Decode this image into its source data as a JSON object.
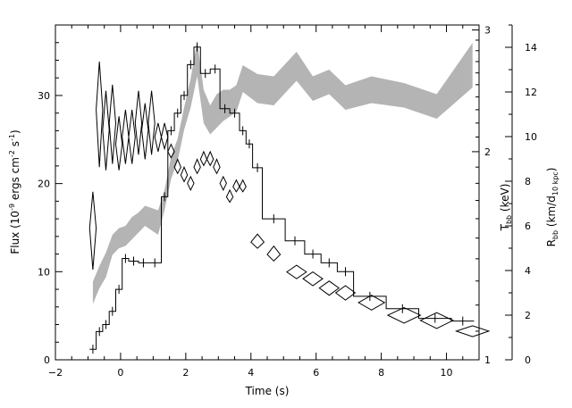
{
  "chart_data": {
    "type": "line",
    "xlabel": "Time (s)",
    "xlim": [
      -2,
      11
    ],
    "x_ticks": [
      -2,
      0,
      2,
      4,
      6,
      8,
      10
    ],
    "left_axis": {
      "label_prefix": "Flux (10",
      "label_exp1": "-9",
      "label_mid": " ergs cm",
      "label_exp2": "-2",
      "label_mid2": " s",
      "label_exp3": "-1",
      "label_suffix": ")",
      "ylim": [
        0,
        38
      ],
      "ticks": [
        0,
        10,
        20,
        30
      ]
    },
    "kT_axis": {
      "label_main": "T",
      "label_sub": "bb",
      "label_suffix": " (keV)",
      "scale": "log",
      "ticks": [
        1,
        2,
        3
      ],
      "tick_labels": [
        "1",
        "2",
        "3"
      ]
    },
    "radius_axis": {
      "label_main": "R",
      "label_sub": "bb",
      "label_mid": " (km/d",
      "label_sub2": "10 kpc",
      "label_suffix": ")",
      "ylim": [
        0,
        15
      ],
      "ticks": [
        0,
        2,
        4,
        6,
        8,
        10,
        12,
        14
      ]
    },
    "series": [
      {
        "style": "flux-histogram",
        "bins": [
          [
            -0.95,
            -0.75,
            1.2
          ],
          [
            -0.75,
            -0.55,
            3.2
          ],
          [
            -0.55,
            -0.35,
            4.0
          ],
          [
            -0.35,
            -0.15,
            5.5
          ],
          [
            -0.15,
            0.05,
            8.0
          ],
          [
            0.05,
            0.25,
            11.5
          ],
          [
            0.25,
            0.55,
            11.2
          ],
          [
            0.55,
            0.85,
            11.0
          ],
          [
            0.85,
            1.25,
            11.0
          ],
          [
            1.25,
            1.45,
            18.5
          ],
          [
            1.45,
            1.65,
            26.0
          ],
          [
            1.65,
            1.85,
            28.0
          ],
          [
            1.85,
            2.05,
            30.0
          ],
          [
            2.05,
            2.25,
            33.5
          ],
          [
            2.25,
            2.45,
            35.5
          ],
          [
            2.45,
            2.75,
            32.5
          ],
          [
            2.75,
            3.05,
            33.0
          ],
          [
            3.05,
            3.35,
            28.5
          ],
          [
            3.35,
            3.65,
            28.0
          ],
          [
            3.65,
            3.85,
            26.0
          ],
          [
            3.85,
            4.05,
            24.5
          ],
          [
            4.05,
            4.35,
            21.8
          ],
          [
            4.35,
            5.05,
            16.0
          ],
          [
            5.05,
            5.65,
            13.5
          ],
          [
            5.65,
            6.15,
            12.0
          ],
          [
            6.15,
            6.65,
            11.0
          ],
          [
            6.65,
            7.15,
            10.0
          ],
          [
            7.15,
            8.15,
            7.2
          ],
          [
            8.15,
            9.15,
            5.8
          ],
          [
            9.15,
            10.15,
            4.7
          ],
          [
            10.15,
            10.85,
            4.4
          ]
        ]
      },
      {
        "style": "radius-band",
        "x": [
          -0.85,
          -0.65,
          -0.45,
          -0.25,
          -0.05,
          0.15,
          0.35,
          0.55,
          0.75,
          0.95,
          1.15,
          1.35,
          1.55,
          1.75,
          1.95,
          2.15,
          2.35,
          2.55,
          2.75,
          2.95,
          3.15,
          3.35,
          3.55,
          3.75,
          4.2,
          4.7,
          5.4,
          5.9,
          6.4,
          6.9,
          7.7,
          8.7,
          9.7,
          10.8
        ],
        "low": [
          2.5,
          3.2,
          3.7,
          4.7,
          5.0,
          5.1,
          5.4,
          5.7,
          6.0,
          5.8,
          5.6,
          6.7,
          8.1,
          8.9,
          10.3,
          11.3,
          12.7,
          10.6,
          10.1,
          10.4,
          10.7,
          10.9,
          11.1,
          12.0,
          11.5,
          11.4,
          12.5,
          11.6,
          11.9,
          11.2,
          11.5,
          11.3,
          10.8,
          12.2
        ],
        "high": [
          3.5,
          4.2,
          4.8,
          5.6,
          5.9,
          6.0,
          6.4,
          6.6,
          6.9,
          6.8,
          6.7,
          7.6,
          9.1,
          9.9,
          11.3,
          12.6,
          14.3,
          12.1,
          11.4,
          11.9,
          12.1,
          12.1,
          12.3,
          13.2,
          12.8,
          12.7,
          13.8,
          12.7,
          13.0,
          12.3,
          12.7,
          12.4,
          11.9,
          14.2
        ]
      },
      {
        "style": "kT-diamonds",
        "x": [
          -0.85,
          -0.65,
          -0.45,
          -0.25,
          -0.05,
          0.15,
          0.35,
          0.55,
          0.75,
          0.95,
          1.15,
          1.35,
          1.55,
          1.75,
          1.95,
          2.15,
          2.35,
          2.55,
          2.75,
          2.95,
          3.15,
          3.35,
          3.55,
          3.75,
          4.2,
          4.7,
          5.4,
          5.9,
          6.4,
          6.9,
          7.7,
          8.7,
          9.7,
          10.8
        ],
        "xerr": [
          0.1,
          0.1,
          0.1,
          0.1,
          0.1,
          0.1,
          0.1,
          0.1,
          0.1,
          0.1,
          0.1,
          0.1,
          0.1,
          0.1,
          0.1,
          0.1,
          0.1,
          0.1,
          0.1,
          0.1,
          0.1,
          0.1,
          0.1,
          0.1,
          0.2,
          0.2,
          0.3,
          0.3,
          0.3,
          0.3,
          0.4,
          0.5,
          0.5,
          0.5
        ],
        "kT": [
          1.55,
          2.3,
          2.15,
          2.2,
          2.05,
          2.1,
          2.1,
          2.2,
          2.15,
          2.2,
          2.1,
          2.1,
          2.0,
          1.9,
          1.85,
          1.8,
          1.9,
          1.95,
          1.95,
          1.9,
          1.8,
          1.72,
          1.78,
          1.78,
          1.48,
          1.42,
          1.34,
          1.31,
          1.27,
          1.25,
          1.21,
          1.16,
          1.14,
          1.1
        ],
        "kT_lo": [
          1.35,
          1.9,
          1.88,
          1.92,
          1.88,
          1.92,
          1.92,
          1.98,
          1.95,
          1.98,
          2.0,
          2.02,
          1.96,
          1.86,
          1.81,
          1.76,
          1.86,
          1.91,
          1.91,
          1.86,
          1.76,
          1.69,
          1.75,
          1.75,
          1.45,
          1.39,
          1.31,
          1.28,
          1.24,
          1.22,
          1.18,
          1.13,
          1.11,
          1.08
        ],
        "kT_hi": [
          1.75,
          2.7,
          2.45,
          2.5,
          2.25,
          2.3,
          2.3,
          2.45,
          2.35,
          2.45,
          2.2,
          2.2,
          2.05,
          1.95,
          1.9,
          1.84,
          1.95,
          2.0,
          2.0,
          1.95,
          1.84,
          1.76,
          1.82,
          1.82,
          1.52,
          1.46,
          1.37,
          1.34,
          1.3,
          1.28,
          1.24,
          1.19,
          1.17,
          1.12
        ]
      }
    ]
  }
}
